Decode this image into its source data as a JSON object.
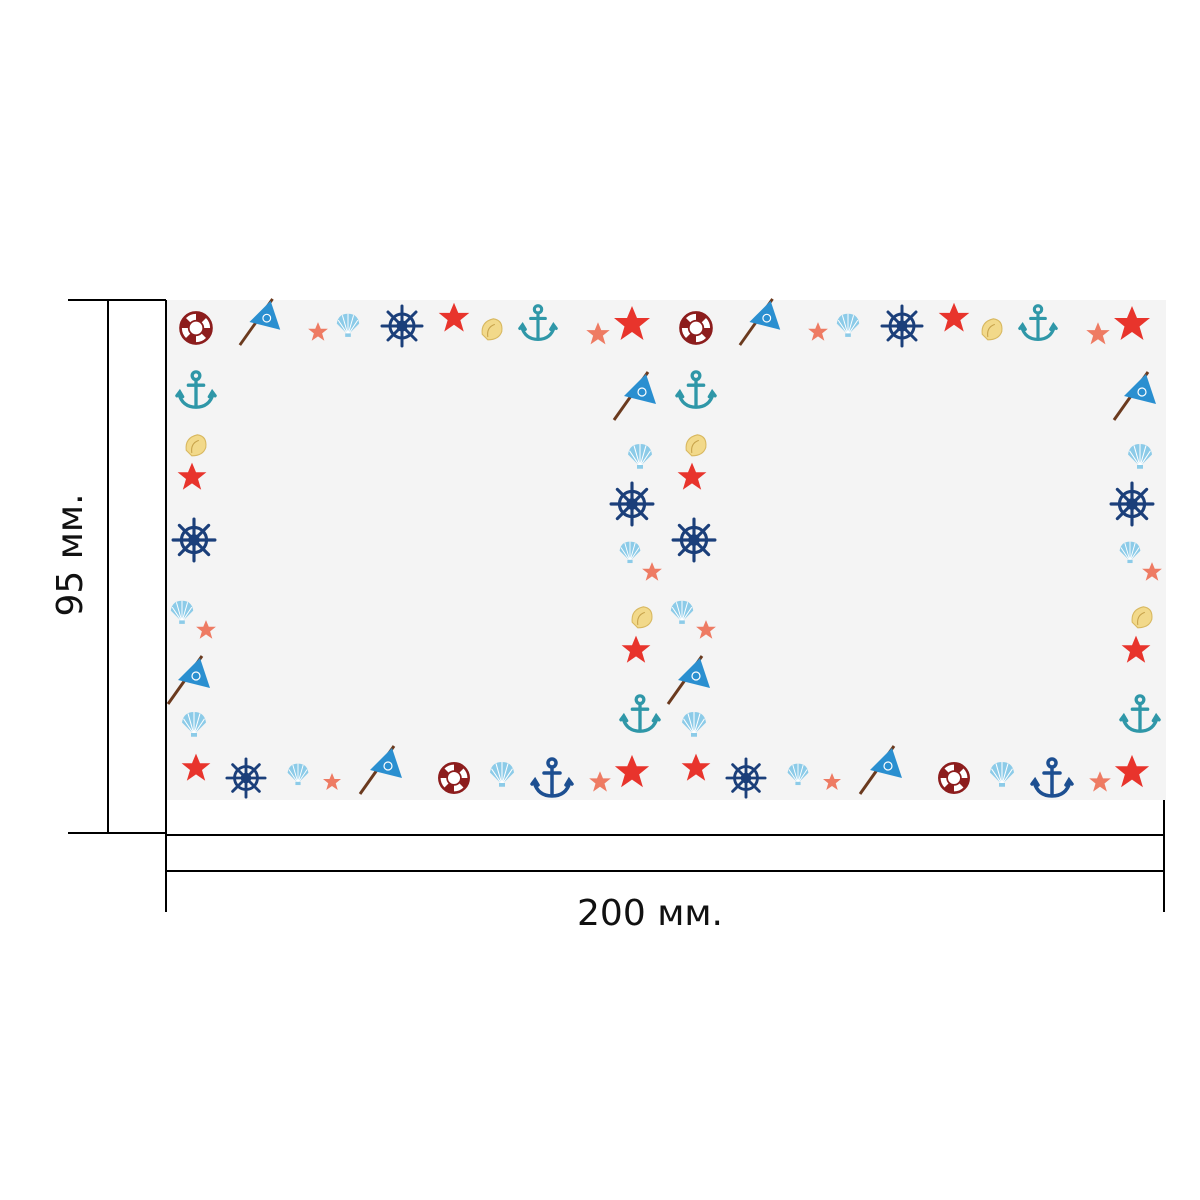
{
  "dimensions": {
    "height_label": "95 мм.",
    "width_label": "200 мм."
  },
  "colors": {
    "background": "#ffffff",
    "card": "#f4f4f4",
    "dimension_line": "#000000",
    "star_red": "#e8342c",
    "star_coral": "#ee7b63",
    "anchor_teal": "#2f97a8",
    "anchor_navy": "#1d4f91",
    "wheel_navy": "#1b3f7a",
    "flag_blue": "#2a8fd0",
    "flag_pole": "#6b3a1e",
    "shell_blue": "#8ccbe8",
    "conch_yellow": "#f2d98a",
    "lifebuoy_red": "#8c1d1d"
  },
  "pattern": {
    "description_icons": [
      "lifebuoy-icon",
      "flag-icon",
      "starfish-icon",
      "shell-icon",
      "ship-wheel-icon",
      "conch-icon",
      "anchor-icon"
    ]
  }
}
